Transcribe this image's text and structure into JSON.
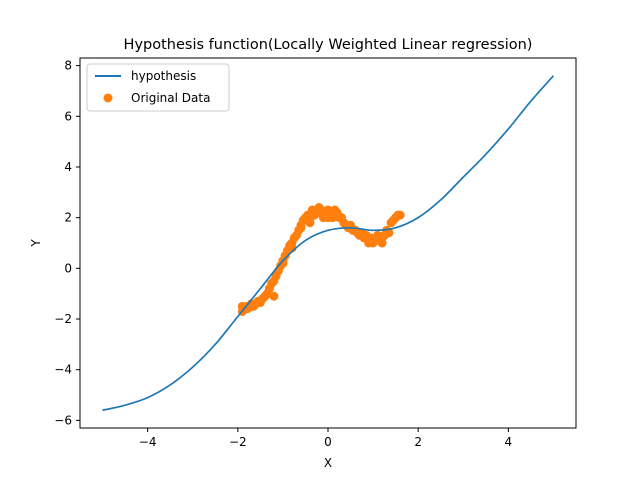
{
  "chart_data": {
    "type": "line",
    "title": "Hypothesis function(Locally Weighted Linear regression)",
    "xlabel": "X",
    "ylabel": "Y",
    "xlim": [
      -5.5,
      5.5
    ],
    "ylim": [
      -6.3,
      8.3
    ],
    "xticks": [
      -4,
      -2,
      0,
      2,
      4
    ],
    "yticks": [
      -6,
      -4,
      -2,
      0,
      2,
      4,
      6,
      8
    ],
    "grid": false,
    "legend_position": "top-left",
    "colors": {
      "hypothesis": "#1f77b4",
      "data": "#ff7f0e"
    },
    "series": [
      {
        "name": "hypothesis",
        "kind": "line",
        "x": [
          -5.0,
          -4.5,
          -4.0,
          -3.5,
          -3.0,
          -2.5,
          -2.0,
          -1.5,
          -1.0,
          -0.5,
          0.0,
          0.5,
          1.0,
          1.5,
          2.0,
          2.5,
          3.0,
          3.5,
          4.0,
          4.5,
          5.0
        ],
        "y": [
          -5.6,
          -5.4,
          -5.1,
          -4.6,
          -3.9,
          -3.0,
          -1.9,
          -0.8,
          0.3,
          1.1,
          1.5,
          1.6,
          1.5,
          1.6,
          2.0,
          2.7,
          3.6,
          4.5,
          5.5,
          6.6,
          7.6
        ]
      },
      {
        "name": "Original Data",
        "kind": "scatter",
        "x": [
          -1.9,
          -1.85,
          -1.8,
          -1.75,
          -1.7,
          -1.65,
          -1.6,
          -1.55,
          -1.5,
          -1.45,
          -1.4,
          -1.35,
          -1.3,
          -1.25,
          -1.2,
          -1.15,
          -1.1,
          -1.05,
          -1.0,
          -0.95,
          -0.9,
          -0.85,
          -0.8,
          -0.75,
          -0.7,
          -0.65,
          -0.6,
          -0.55,
          -0.5,
          -0.45,
          -0.4,
          -0.35,
          -0.3,
          -0.25,
          -0.2,
          -0.15,
          -0.1,
          -0.05,
          0.0,
          0.05,
          0.1,
          0.15,
          0.2,
          0.25,
          0.3,
          0.35,
          0.4,
          0.45,
          0.5,
          0.55,
          0.6,
          0.65,
          0.7,
          0.75,
          0.8,
          0.85,
          0.9,
          0.95,
          1.0,
          1.05,
          1.1,
          1.15,
          1.2,
          1.25,
          1.3,
          1.35,
          1.4,
          1.45,
          1.5,
          1.55,
          1.6,
          -1.9,
          -1.8,
          -1.7,
          -1.6,
          -1.2,
          -1.0,
          -0.8,
          -0.6,
          -0.4,
          -0.2,
          0.0,
          0.1,
          0.2,
          0.6,
          0.8,
          1.0,
          1.2
        ],
        "y": [
          -1.7,
          -1.6,
          -1.5,
          -1.55,
          -1.45,
          -1.5,
          -1.4,
          -1.3,
          -1.35,
          -1.2,
          -1.1,
          -1.0,
          -0.8,
          -0.6,
          -0.5,
          -0.3,
          -0.1,
          0.1,
          0.3,
          0.5,
          0.7,
          0.9,
          1.0,
          1.2,
          1.3,
          1.5,
          1.7,
          1.9,
          2.0,
          2.1,
          2.0,
          2.3,
          2.1,
          2.2,
          2.4,
          2.3,
          2.0,
          2.2,
          2.3,
          2.1,
          2.2,
          2.3,
          2.1,
          2.0,
          2.0,
          1.8,
          1.7,
          1.6,
          1.7,
          1.5,
          1.5,
          1.4,
          1.3,
          1.4,
          1.2,
          1.3,
          1.0,
          1.2,
          1.1,
          1.2,
          1.3,
          1.1,
          1.2,
          1.3,
          1.5,
          1.4,
          1.8,
          1.9,
          2.0,
          2.1,
          2.1,
          -1.5,
          -1.6,
          -1.4,
          -1.4,
          -1.1,
          0.2,
          0.8,
          1.6,
          1.8,
          2.2,
          2.0,
          2.0,
          2.2,
          1.5,
          1.3,
          1.0,
          1.0
        ]
      }
    ]
  }
}
